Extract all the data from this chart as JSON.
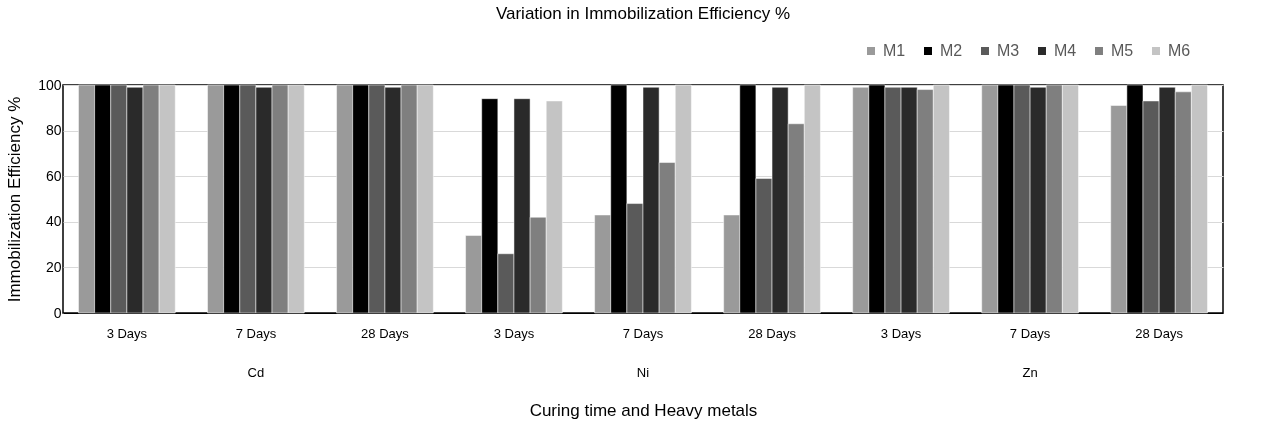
{
  "chart_data": {
    "type": "bar",
    "title": "Variation in Immobilization Efficiency %",
    "xlabel": "Curing time and Heavy metals",
    "ylabel": "Immobilization Efficiency %",
    "categories": [
      "3 Days",
      "7 Days",
      "28 Days",
      "3 Days",
      "7 Days",
      "28 Days",
      "3 Days",
      "7 Days",
      "28 Days"
    ],
    "annotations": [
      "Cd",
      "Ni",
      "Zn"
    ],
    "series": [
      {
        "name": "M1",
        "color": "#9a9a9a",
        "values": [
          100,
          100,
          100,
          34,
          43,
          43,
          99,
          100,
          91
        ]
      },
      {
        "name": "M2",
        "color": "#000000",
        "values": [
          100,
          100,
          100,
          94,
          100,
          100,
          100,
          100,
          100
        ]
      },
      {
        "name": "M3",
        "color": "#5a5a5a",
        "values": [
          100,
          100,
          100,
          26,
          48,
          59,
          99,
          100,
          93
        ]
      },
      {
        "name": "M4",
        "color": "#2a2a2a",
        "values": [
          99,
          99,
          99,
          94,
          99,
          99,
          99,
          99,
          99
        ]
      },
      {
        "name": "M5",
        "color": "#7f7f7f",
        "values": [
          100,
          100,
          100,
          42,
          66,
          83,
          98,
          100,
          97
        ]
      },
      {
        "name": "M6",
        "color": "#c4c4c4",
        "values": [
          100,
          100,
          100,
          93,
          100,
          100,
          100,
          100,
          100
        ]
      }
    ],
    "ylim": [
      0,
      100
    ],
    "yticks": [
      0,
      20,
      40,
      60,
      80,
      100
    ],
    "grid": "y",
    "legend": "top right"
  }
}
